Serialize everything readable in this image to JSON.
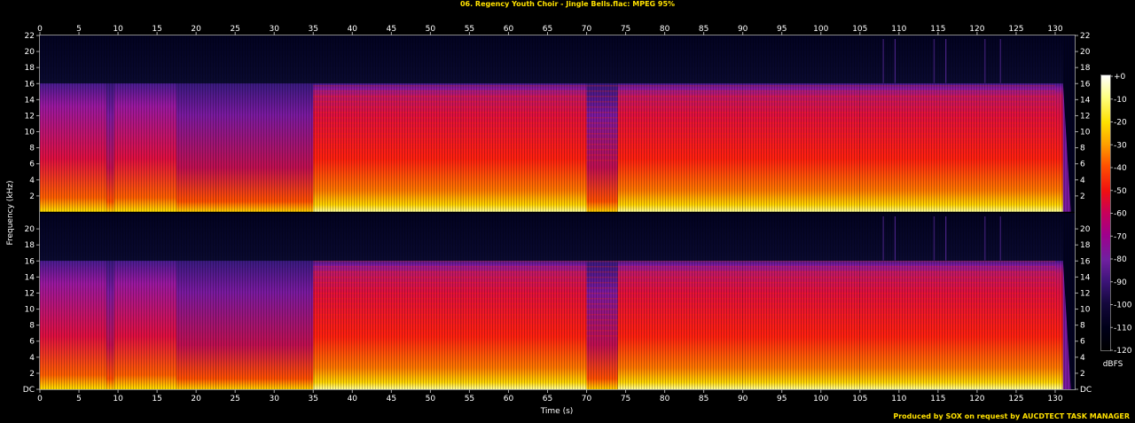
{
  "header": {
    "title": "06. Regency Youth Choir - Jingle Bells.flac: MPEG 95%"
  },
  "footer": {
    "credit": "Produced by SOX on request by AUCDTECT TASK MANAGER"
  },
  "colorbar": {
    "unit_label": "dBFS",
    "ticks": [
      "+0",
      "-10",
      "-20",
      "-30",
      "-40",
      "-50",
      "-60",
      "-70",
      "-80",
      "-90",
      "-100",
      "-110",
      "-120"
    ],
    "stops": [
      "#ffffff",
      "#ffff80",
      "#ffe000",
      "#ffa000",
      "#ff5000",
      "#f01010",
      "#c8005a",
      "#a0008c",
      "#7020a0",
      "#3c1478",
      "#14083c",
      "#000018",
      "#000000"
    ]
  },
  "chart_data": {
    "type": "heatmap",
    "xlabel": "Time (s)",
    "ylabel": "Frequency (kHz)",
    "xlim": [
      0,
      132.5
    ],
    "ylim": [
      0,
      22
    ],
    "x_ticks": [
      "0",
      "5",
      "10",
      "15",
      "20",
      "25",
      "30",
      "35",
      "40",
      "45",
      "50",
      "55",
      "60",
      "65",
      "70",
      "75",
      "80",
      "85",
      "90",
      "95",
      "100",
      "105",
      "110",
      "115",
      "120",
      "125",
      "130"
    ],
    "y_ticks": [
      "DC",
      "2",
      "4",
      "6",
      "8",
      "10",
      "12",
      "14",
      "16",
      "18",
      "20",
      "22"
    ],
    "channels": 2,
    "lowpass_cutoff_khz": 16,
    "track_end_s": 131.5
  }
}
